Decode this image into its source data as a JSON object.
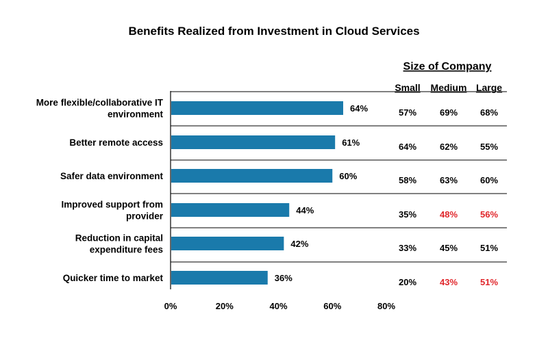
{
  "chart_data": {
    "type": "bar",
    "orientation": "horizontal",
    "title": "Benefits Realized from Investment in Cloud Services",
    "categories": [
      [
        "More flexible/collaborative IT",
        "environment"
      ],
      [
        "Better remote access"
      ],
      [
        "Safer data environment"
      ],
      [
        "Improved support from",
        "provider"
      ],
      [
        "Reduction in capital",
        "expenditure fees"
      ],
      [
        "Quicker time to market"
      ]
    ],
    "values": [
      64,
      61,
      60,
      44,
      42,
      36
    ],
    "value_labels": [
      "64%",
      "61%",
      "60%",
      "44%",
      "42%",
      "36%"
    ],
    "xlim": [
      0,
      80
    ],
    "x_ticks": [
      "0%",
      "20%",
      "40%",
      "60%",
      "80%"
    ],
    "bar_color": "#1a7aab",
    "grid": false
  },
  "size_table": {
    "group_title": "Size of Company",
    "columns": [
      "Small",
      "Medium",
      "Large"
    ],
    "rows": [
      [
        "57%",
        "69%",
        "68%"
      ],
      [
        "64%",
        "62%",
        "55%"
      ],
      [
        "58%",
        "63%",
        "60%"
      ],
      [
        "35%",
        "48%",
        "56%"
      ],
      [
        "33%",
        "45%",
        "51%"
      ],
      [
        "20%",
        "43%",
        "51%"
      ]
    ],
    "highlight": [
      [
        false,
        false,
        false
      ],
      [
        false,
        false,
        false
      ],
      [
        false,
        false,
        false
      ],
      [
        false,
        true,
        true
      ],
      [
        false,
        false,
        false
      ],
      [
        false,
        true,
        true
      ]
    ],
    "highlight_color": "#e0262b",
    "text_color": "#000000"
  }
}
